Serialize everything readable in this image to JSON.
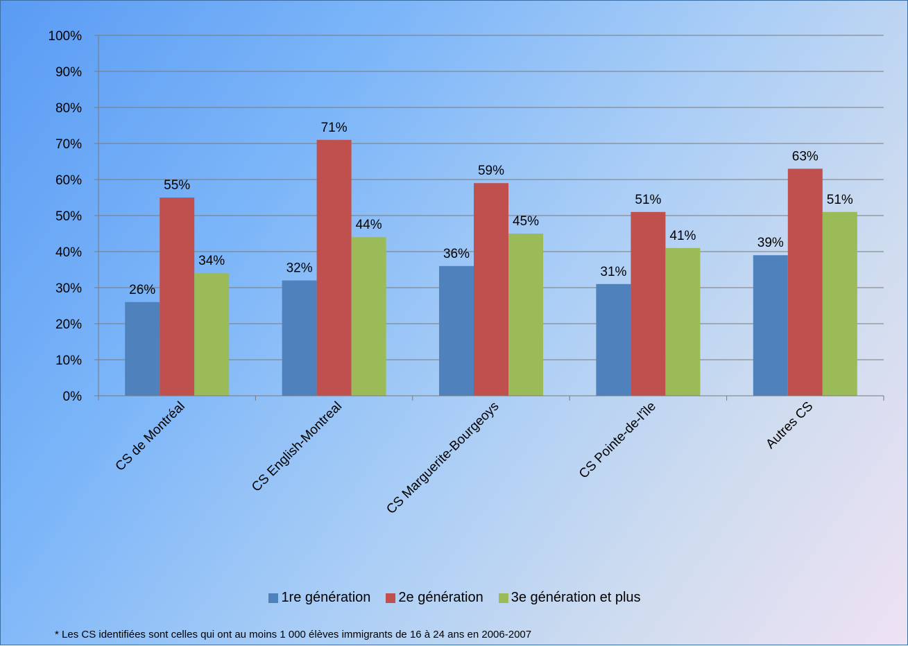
{
  "chart_data": {
    "type": "bar",
    "categories": [
      "CS de Montréal",
      "CS English-Montreal",
      "CS Marguerite-Bourgeoys",
      "CS Pointe-de-l'île",
      "Autres CS"
    ],
    "series": [
      {
        "name": "1re génération",
        "color": "#4f81bd",
        "values": [
          26,
          32,
          36,
          31,
          39
        ],
        "labels": [
          "26%",
          "32%",
          "36%",
          "31%",
          "39%"
        ]
      },
      {
        "name": "2e génération",
        "color": "#c0504d",
        "values": [
          55,
          71,
          59,
          51,
          63
        ],
        "labels": [
          "55%",
          "71%",
          "59%",
          "51%",
          "63%"
        ]
      },
      {
        "name": "3e génération et plus",
        "color": "#9bbb59",
        "values": [
          34,
          44,
          45,
          41,
          51
        ],
        "labels": [
          "34%",
          "44%",
          "45%",
          "41%",
          "51%"
        ]
      }
    ],
    "yticks": [
      "0%",
      "10%",
      "20%",
      "30%",
      "40%",
      "50%",
      "60%",
      "70%",
      "80%",
      "90%",
      "100%"
    ],
    "ylim": [
      0,
      100
    ],
    "grid": true,
    "legend_position": "bottom"
  },
  "footnote": "* Les CS identifiées sont celles qui ont au moins 1 000 élèves immigrants de 16 à 24 ans en 2006-2007"
}
